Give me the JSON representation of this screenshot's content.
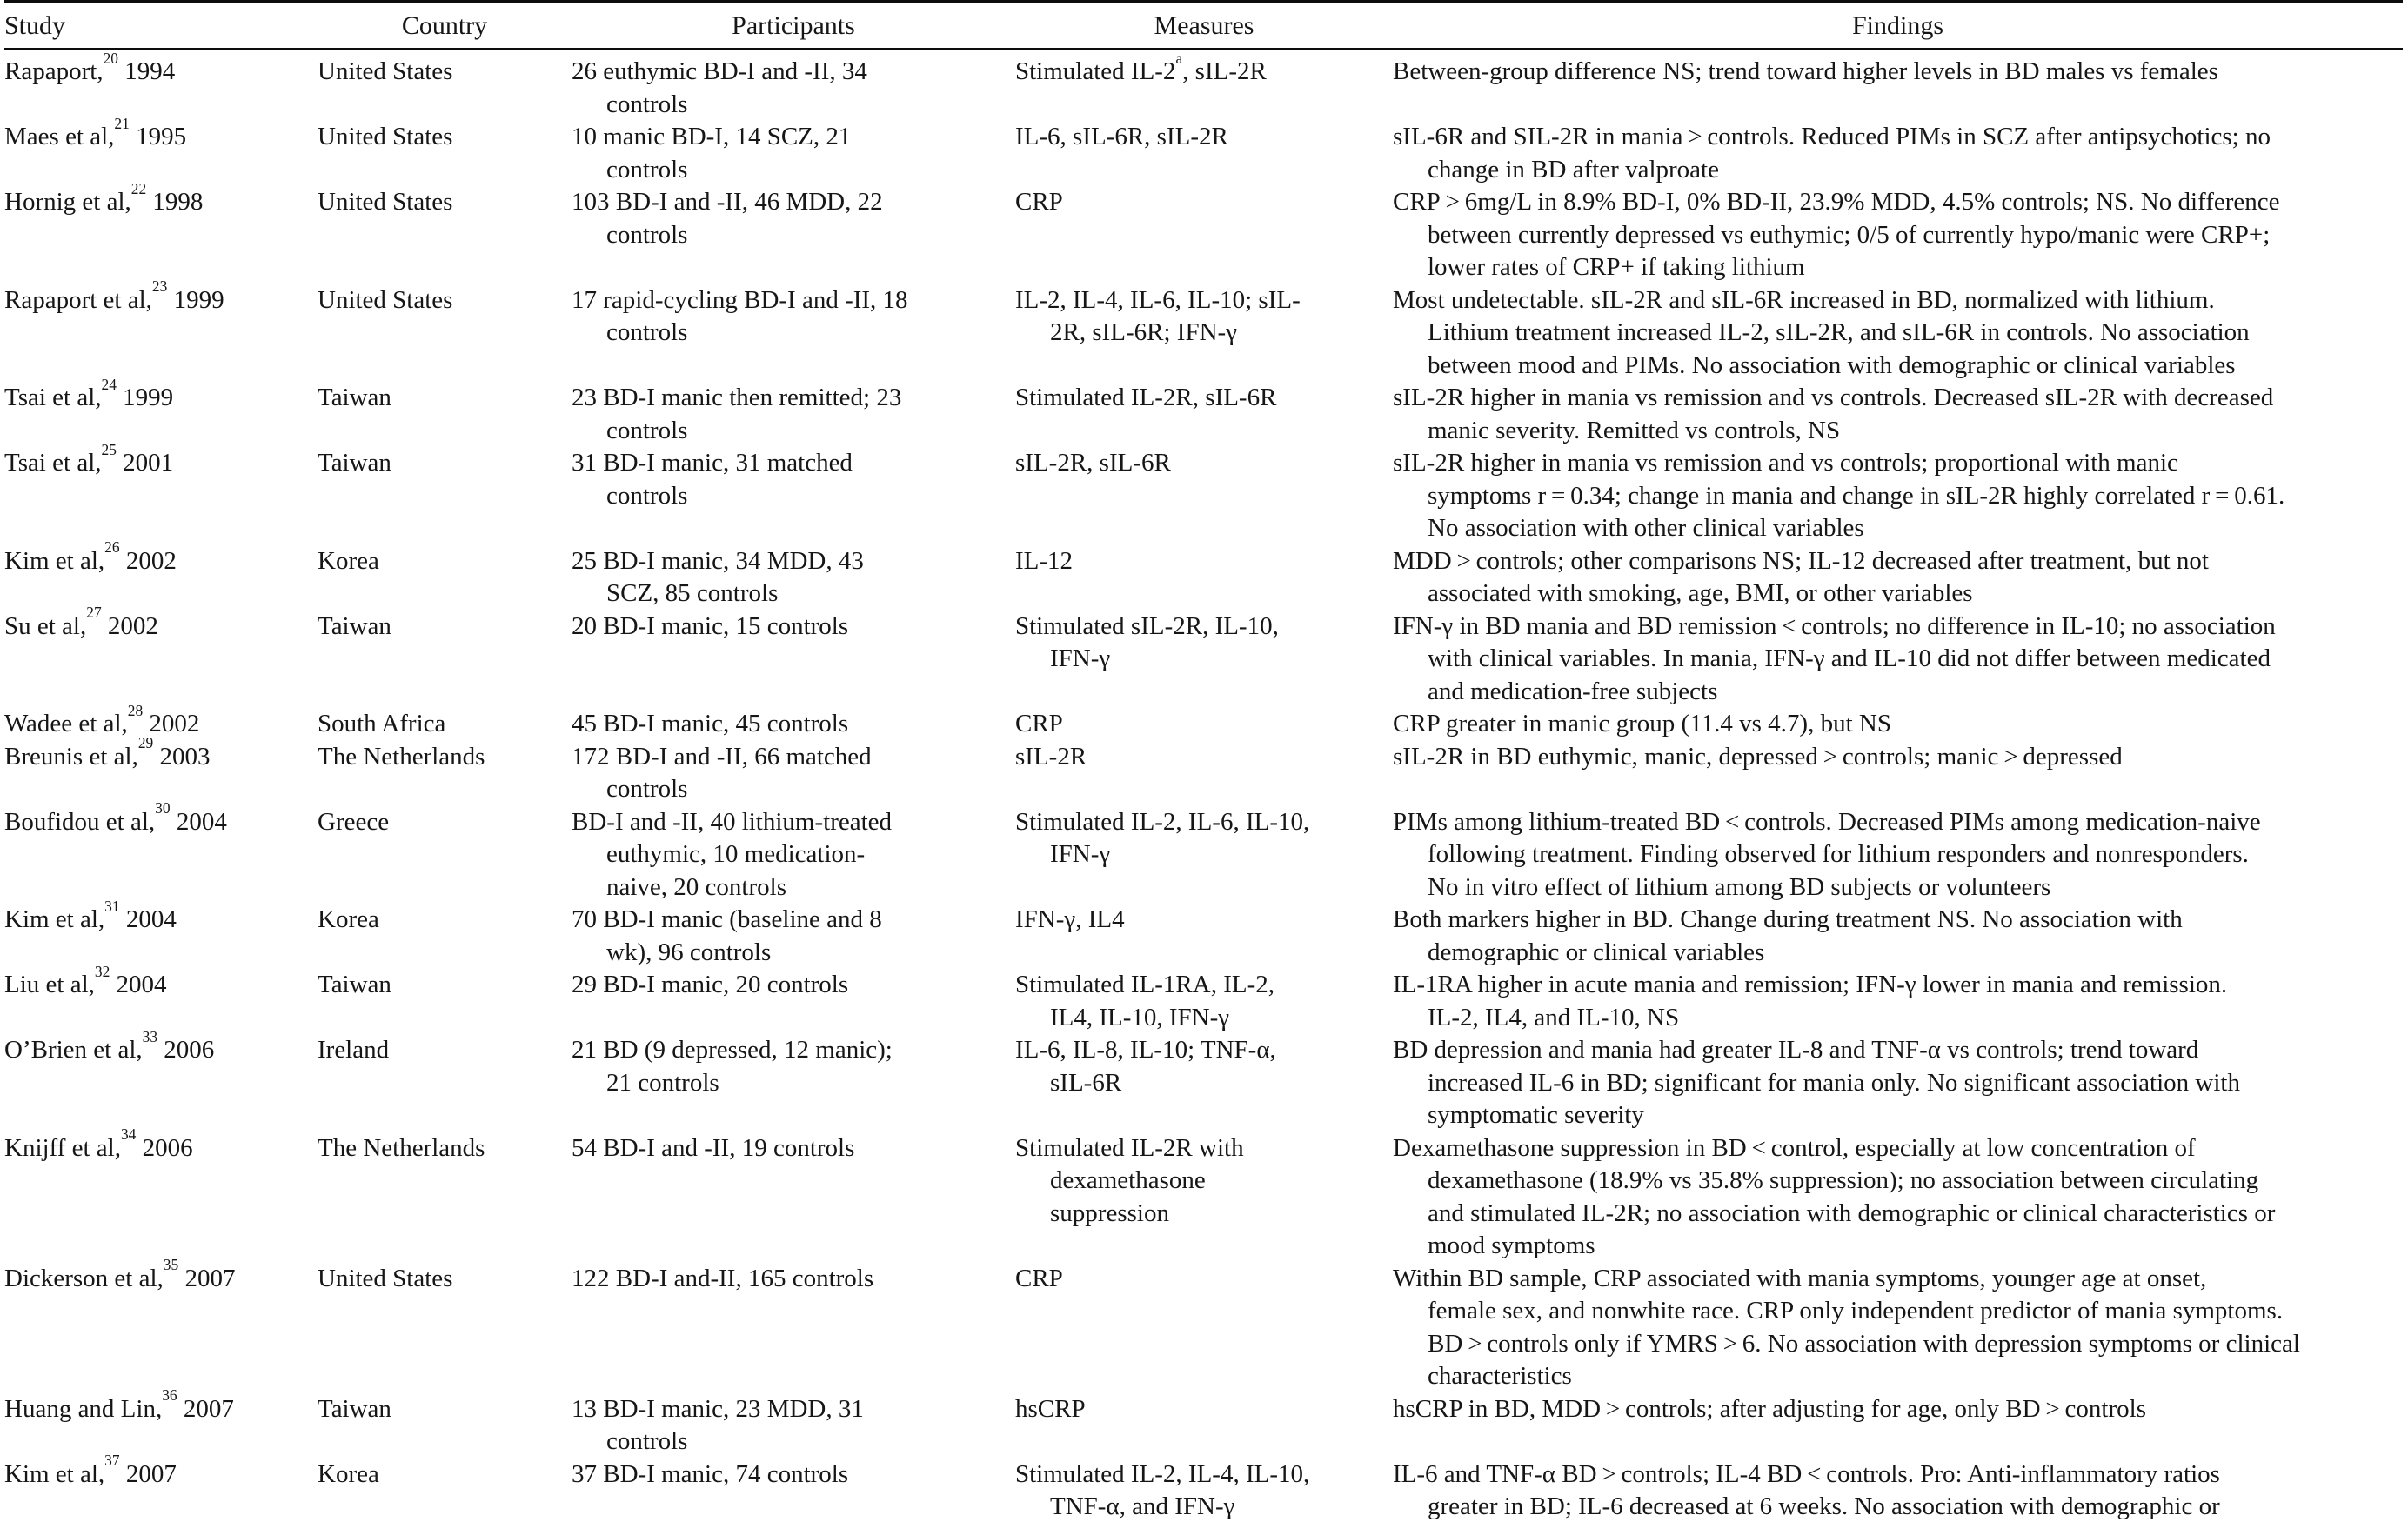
{
  "table": {
    "headers": {
      "study": "Study",
      "country": "Country",
      "participants": "Participants",
      "measures": "Measures",
      "findings": "Findings"
    },
    "rows": [
      {
        "study": "Rapaport,^20^ 1994",
        "country": "United States",
        "participants": [
          "26 euthymic BD-I and -II, 34",
          "controls"
        ],
        "measures": [
          "Stimulated IL-2^a^, sIL-2R"
        ],
        "findings": [
          "Between-group difference NS; trend toward higher levels in BD males vs females"
        ]
      },
      {
        "study": "Maes et al,^21^ 1995",
        "country": "United States",
        "participants": [
          "10 manic BD-I, 14 SCZ, 21",
          "controls"
        ],
        "measures": [
          "IL-6, sIL-6R, sIL-2R"
        ],
        "findings": [
          "sIL-6R and SIL-2R in mania > controls. Reduced PIMs in SCZ after antipsychotics; no",
          "change in BD after valproate"
        ]
      },
      {
        "study": "Hornig et al,^22^ 1998",
        "country": "United States",
        "participants": [
          "103 BD-I and -II, 46 MDD, 22",
          "controls"
        ],
        "measures": [
          "CRP"
        ],
        "findings": [
          "CRP > 6mg/L in 8.9% BD-I, 0% BD-II, 23.9% MDD, 4.5% controls; NS. No difference",
          "between currently depressed vs euthymic; 0/5 of currently hypo/manic were CRP+;",
          "lower rates of CRP+ if taking lithium"
        ]
      },
      {
        "study": "Rapaport et al,^23^ 1999",
        "country": "United States",
        "participants": [
          "17 rapid-cycling BD-I and -II, 18",
          "controls"
        ],
        "measures": [
          "IL-2, IL-4, IL-6, IL-10; sIL-",
          "2R, sIL-6R; IFN-γ"
        ],
        "findings": [
          "Most undetectable. sIL-2R and sIL-6R increased in BD, normalized with lithium.",
          "Lithium treatment increased IL-2, sIL-2R, and sIL-6R in controls. No association",
          "between mood and PIMs. No association with demographic or clinical variables"
        ]
      },
      {
        "study": "Tsai et al,^24^ 1999",
        "country": "Taiwan",
        "participants": [
          "23 BD-I manic then remitted; 23",
          "controls"
        ],
        "measures": [
          "Stimulated IL-2R, sIL-6R"
        ],
        "findings": [
          "sIL-2R higher in mania vs remission and vs controls. Decreased sIL-2R with decreased",
          "manic severity. Remitted vs controls, NS"
        ]
      },
      {
        "study": "Tsai et al,^25^ 2001",
        "country": "Taiwan",
        "participants": [
          "31 BD-I manic, 31 matched",
          "controls"
        ],
        "measures": [
          "sIL-2R, sIL-6R"
        ],
        "findings": [
          "sIL-2R higher in mania vs remission and vs controls; proportional with manic",
          "symptoms r = 0.34; change in mania and change in sIL-2R highly correlated r = 0.61.",
          "No association with other clinical variables"
        ]
      },
      {
        "study": "Kim et al,^26^ 2002",
        "country": "Korea",
        "participants": [
          "25 BD-I manic, 34 MDD, 43",
          "SCZ, 85 controls"
        ],
        "measures": [
          "IL-12"
        ],
        "findings": [
          "MDD > controls; other comparisons NS; IL-12 decreased after treatment, but not",
          "associated with smoking, age, BMI, or other variables"
        ]
      },
      {
        "study": "Su et al,^27^ 2002",
        "country": "Taiwan",
        "participants": [
          "20 BD-I manic, 15 controls"
        ],
        "measures": [
          "Stimulated sIL-2R, IL-10,",
          "IFN-γ"
        ],
        "findings": [
          "IFN-γ in BD mania and BD remission < controls; no difference in IL-10; no association",
          "with clinical variables. In mania, IFN-γ and IL-10 did not differ between medicated",
          "and medication-free subjects"
        ]
      },
      {
        "study": "Wadee et al,^28^ 2002",
        "country": "South Africa",
        "participants": [
          "45 BD-I manic, 45 controls"
        ],
        "measures": [
          "CRP"
        ],
        "findings": [
          "CRP greater in manic group (11.4 vs 4.7), but NS"
        ]
      },
      {
        "study": "Breunis et al,^29^ 2003",
        "country": "The Netherlands",
        "participants": [
          "172 BD-I and -II, 66 matched",
          "controls"
        ],
        "measures": [
          "sIL-2R"
        ],
        "findings": [
          "sIL-2R in BD euthymic, manic, depressed > controls; manic > depressed"
        ]
      },
      {
        "study": "Boufidou et al,^30^ 2004",
        "country": "Greece",
        "participants": [
          "BD-I and -II, 40 lithium-treated",
          "euthymic, 10 medication-",
          "naive, 20 controls"
        ],
        "measures": [
          "Stimulated IL-2, IL-6, IL-10,",
          "IFN-γ"
        ],
        "findings": [
          "PIMs among lithium-treated BD < controls. Decreased PIMs among medication-naive",
          "following treatment. Finding observed for lithium responders and nonresponders.",
          "No in vitro effect of lithium among BD subjects or volunteers"
        ]
      },
      {
        "study": "Kim et al,^31^ 2004",
        "country": "Korea",
        "participants": [
          "70 BD-I manic (baseline and 8",
          "wk), 96 controls"
        ],
        "measures": [
          "IFN-γ, IL4"
        ],
        "findings": [
          "Both markers higher in BD. Change during treatment NS. No association with",
          "demographic or clinical variables"
        ]
      },
      {
        "study": "Liu et al,^32^ 2004",
        "country": "Taiwan",
        "participants": [
          "29 BD-I manic, 20 controls"
        ],
        "measures": [
          "Stimulated IL-1RA, IL-2,",
          "IL4, IL-10, IFN-γ"
        ],
        "findings": [
          "IL-1RA higher in acute mania and remission; IFN-γ lower in mania and remission.",
          "IL-2, IL4, and IL-10, NS"
        ]
      },
      {
        "study": "O’Brien et al,^33^ 2006",
        "country": "Ireland",
        "participants": [
          "21 BD (9 depressed, 12 manic);",
          "21 controls"
        ],
        "measures": [
          "IL-6, IL-8, IL-10; TNF-α,",
          "sIL-6R"
        ],
        "findings": [
          "BD depression and mania had greater IL-8 and TNF-α vs controls; trend toward",
          "increased IL-6 in BD; significant for mania only. No significant association with",
          "symptomatic severity"
        ]
      },
      {
        "study": "Knijff et al,^34^ 2006",
        "country": "The Netherlands",
        "participants": [
          "54 BD-I and -II, 19 controls"
        ],
        "measures": [
          "Stimulated IL-2R with",
          "dexamethasone",
          "suppression"
        ],
        "findings": [
          "Dexamethasone suppression in BD < control, especially at low concentration of",
          "dexamethasone (18.9% vs 35.8% suppression); no association between circulating",
          "and stimulated IL-2R; no association with demographic or clinical characteristics or",
          "mood symptoms"
        ]
      },
      {
        "study": "Dickerson et al,^35^ 2007",
        "country": "United States",
        "participants": [
          "122 BD-I and-II, 165 controls"
        ],
        "measures": [
          "CRP"
        ],
        "findings": [
          "Within BD sample, CRP associated with mania symptoms, younger age at onset,",
          "female sex, and nonwhite race. CRP only independent predictor of mania symptoms.",
          "BD > controls only if YMRS > 6. No association with depression symptoms or clinical",
          "characteristics"
        ]
      },
      {
        "study": "Huang and Lin,^36^ 2007",
        "country": "Taiwan",
        "participants": [
          "13 BD-I manic, 23 MDD, 31",
          "controls"
        ],
        "measures": [
          "hsCRP"
        ],
        "findings": [
          "hsCRP in BD, MDD > controls; after adjusting for age, only BD > controls"
        ]
      },
      {
        "study": "Kim et al,^37^ 2007",
        "country": "Korea",
        "participants": [
          "37 BD-I manic, 74 controls"
        ],
        "measures": [
          "Stimulated IL-2, IL-4, IL-10,",
          "TNF-α, and IFN-γ"
        ],
        "findings": [
          "IL-6 and TNF-α BD > controls; IL-4 BD < controls. Pro: Anti-inflammatory ratios",
          "greater in BD; IL-6 decreased at 6 weeks. No association with demographic or"
        ]
      }
    ]
  }
}
